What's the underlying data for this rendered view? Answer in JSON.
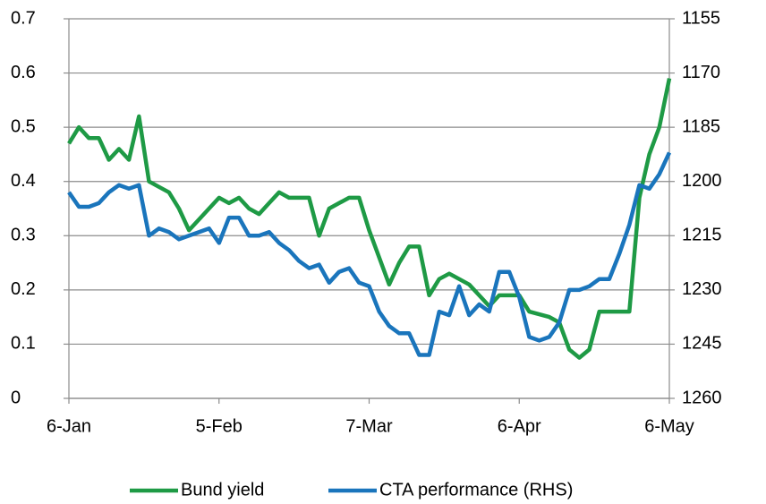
{
  "chart_data": {
    "type": "line",
    "categories": [
      "6-Jan",
      null,
      null,
      null,
      null,
      null,
      null,
      null,
      null,
      null,
      null,
      null,
      null,
      null,
      null,
      "5-Feb",
      null,
      null,
      null,
      null,
      null,
      null,
      null,
      null,
      null,
      null,
      null,
      null,
      null,
      null,
      "7-Mar",
      null,
      null,
      null,
      null,
      null,
      null,
      null,
      null,
      null,
      null,
      null,
      null,
      null,
      null,
      "6-Apr",
      null,
      null,
      null,
      null,
      null,
      null,
      null,
      null,
      null,
      null,
      null,
      null,
      null,
      null,
      "6-May"
    ],
    "series": [
      {
        "name": "Bund yield",
        "color": "#1e9a45",
        "values": [
          0.47,
          0.5,
          0.48,
          0.48,
          0.44,
          0.46,
          0.44,
          0.52,
          0.4,
          0.39,
          0.38,
          0.35,
          0.31,
          0.33,
          0.35,
          0.37,
          0.36,
          0.37,
          0.35,
          0.34,
          0.36,
          0.38,
          0.37,
          0.37,
          0.37,
          0.3,
          0.35,
          0.36,
          0.37,
          0.37,
          0.31,
          0.26,
          0.21,
          0.25,
          0.28,
          0.28,
          0.19,
          0.22,
          0.23,
          0.22,
          0.21,
          0.19,
          0.17,
          0.19,
          0.19,
          0.19,
          0.16,
          0.155,
          0.15,
          0.14,
          0.09,
          0.075,
          0.09,
          0.16,
          0.16,
          0.16,
          0.16,
          0.37,
          0.45,
          0.5,
          0.59
        ]
      },
      {
        "name": "CTA performance (RHS)",
        "color": "#1a75bc",
        "axis": "y2",
        "values": [
          1203,
          1207,
          1207,
          1206,
          1203,
          1201,
          1202,
          1201,
          1215,
          1213,
          1214,
          1216,
          1215,
          1214,
          1213,
          1217,
          1210,
          1210,
          1215,
          1215,
          1214,
          1217,
          1219,
          1222,
          1224,
          1223,
          1228,
          1225,
          1224,
          1228,
          1229,
          1236,
          1240,
          1242,
          1242,
          1248,
          1248,
          1236,
          1237,
          1229,
          1237,
          1234,
          1236,
          1225,
          1225,
          1232,
          1243,
          1244,
          1243,
          1239,
          1230,
          1230,
          1229,
          1227,
          1227,
          1220,
          1212,
          1201,
          1202,
          1198,
          1192
        ]
      }
    ],
    "ylim": [
      0,
      0.7
    ],
    "yticks": [
      0,
      0.1,
      0.2,
      0.3,
      0.4,
      0.5,
      0.6,
      0.7
    ],
    "y2lim": [
      1260,
      1155
    ],
    "y2ticks": [
      1155,
      1170,
      1185,
      1200,
      1215,
      1230,
      1245,
      1260
    ],
    "grid": true,
    "legend": "bottom"
  }
}
